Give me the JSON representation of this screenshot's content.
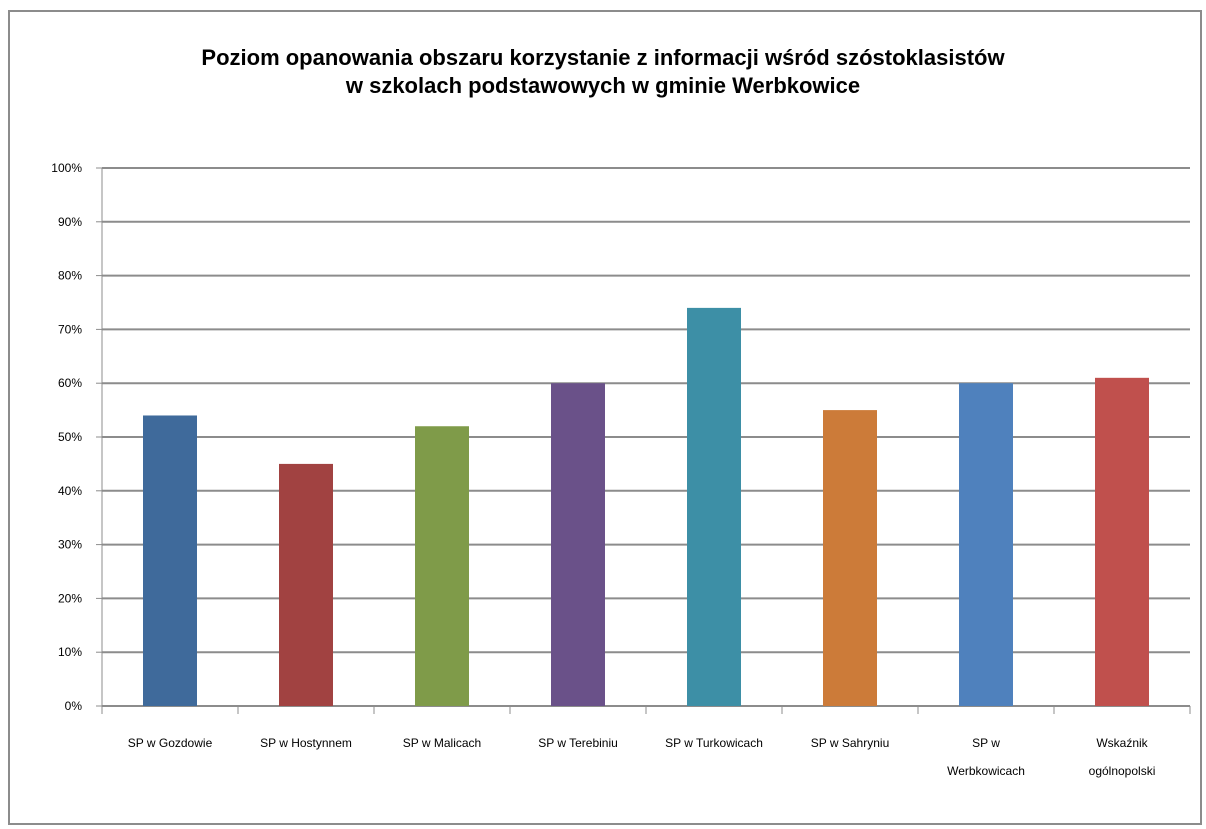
{
  "chart_data": {
    "type": "bar",
    "title_lines": [
      "Poziom opanowania obszaru korzystanie z informacji wśród szóstoklasistów",
      "w szkolach podstawowych w gminie Werbkowice"
    ],
    "categories": [
      [
        "SP w Gozdowie"
      ],
      [
        "SP w Hostynnem"
      ],
      [
        "SP w Malicach"
      ],
      [
        "SP w Terebiniu"
      ],
      [
        "SP w Turkowicach"
      ],
      [
        "SP w Sahryniu"
      ],
      [
        "SP w",
        "Werbkowicach"
      ],
      [
        "Wskaźnik",
        "ogólnopolski"
      ]
    ],
    "values": [
      54,
      45,
      52,
      60,
      74,
      55,
      60,
      61
    ],
    "colors": [
      "#3f6a9b",
      "#a14241",
      "#7f9b49",
      "#6a5189",
      "#3d8fa6",
      "#cc7b39",
      "#4f81bd",
      "#c0504d"
    ],
    "ylim": [
      0,
      100
    ],
    "ytick_step": 10,
    "ytick_suffix": "%",
    "grid": true,
    "legend": "none"
  }
}
